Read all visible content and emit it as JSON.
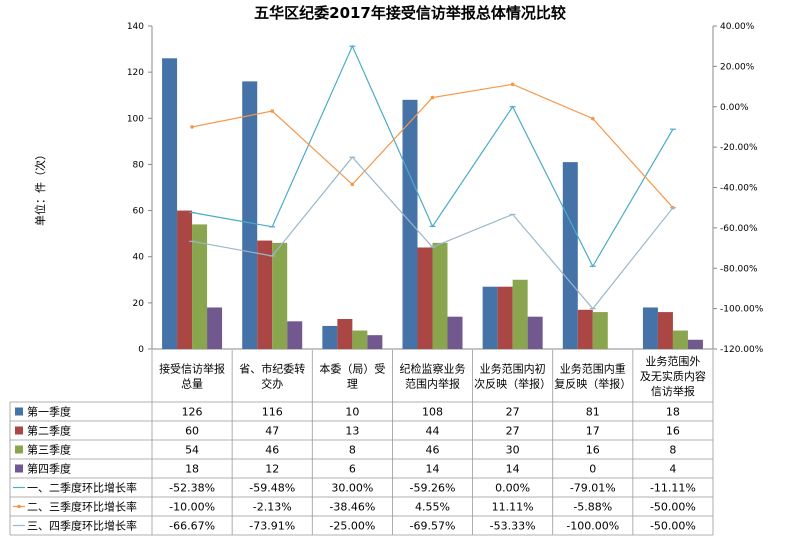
{
  "chart_data": {
    "type": "bar",
    "title": "五华区纪委2017年接受信访举报总体情况比较",
    "ylabel": "单位：件（次）",
    "ylim": [
      0,
      140
    ],
    "y_ticks": [
      "0",
      "20",
      "40",
      "60",
      "80",
      "100",
      "120",
      "140"
    ],
    "y2lim": [
      -120,
      40
    ],
    "y2_ticks": [
      "-120.00%",
      "-100.00%",
      "-80.00%",
      "-60.00%",
      "-40.00%",
      "-20.00%",
      "0.00%",
      "20.00%",
      "40.00%"
    ],
    "categories": [
      [
        "接受信访举报",
        "总量"
      ],
      [
        "省、市纪委转",
        "交办"
      ],
      [
        "本委（局）受",
        "理"
      ],
      [
        "纪检监察业务",
        "范围内举报"
      ],
      [
        "业务范围内初",
        "次反映（举报）"
      ],
      [
        "业务范围内重",
        "复反映（举报）"
      ],
      [
        "业务范围外",
        "及无实质内容",
        "信访举报"
      ]
    ],
    "series": [
      {
        "name": "第一季度",
        "color": "#4572a7",
        "values": [
          126,
          116,
          10,
          108,
          27,
          81,
          18
        ]
      },
      {
        "name": "第二季度",
        "color": "#aa4643",
        "values": [
          60,
          47,
          13,
          44,
          27,
          17,
          16
        ]
      },
      {
        "name": "第三季度",
        "color": "#89a54e",
        "values": [
          54,
          46,
          8,
          46,
          30,
          16,
          8
        ]
      },
      {
        "name": "第四季度",
        "color": "#71588f",
        "values": [
          18,
          12,
          6,
          14,
          14,
          0,
          4
        ]
      }
    ],
    "line_series": [
      {
        "name": "一、二季度环比增长率",
        "color": "#4bacc6",
        "values": [
          -52.38,
          -59.48,
          30.0,
          -59.26,
          0.0,
          -79.01,
          -11.11
        ],
        "labels": [
          "-52.38%",
          "-59.48%",
          "30.00%",
          "-59.26%",
          "0.00%",
          "-79.01%",
          "-11.11%"
        ]
      },
      {
        "name": "二、三季度环比增长率",
        "color": "#f79646",
        "values": [
          -10.0,
          -2.13,
          -38.46,
          4.55,
          11.11,
          -5.88,
          -50.0
        ],
        "labels": [
          "-10.00%",
          "-2.13%",
          "-38.46%",
          "4.55%",
          "11.11%",
          "-5.88%",
          "-50.00%"
        ]
      },
      {
        "name": "三、四季度环比增长率",
        "color": "#9bb7c9",
        "values": [
          -66.67,
          -73.91,
          -25.0,
          -69.57,
          -53.33,
          -100.0,
          -50.0
        ],
        "labels": [
          "-66.67%",
          "-73.91%",
          "-25.00%",
          "-69.57%",
          "-53.33%",
          "-100.00%",
          "-50.00%"
        ]
      }
    ]
  }
}
